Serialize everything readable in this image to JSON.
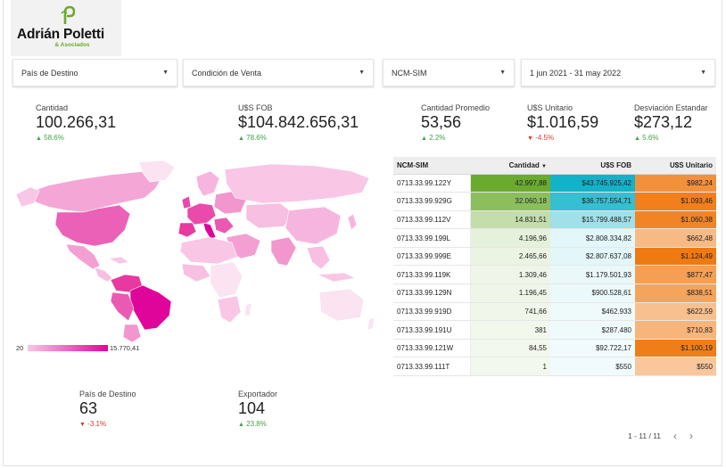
{
  "logo": {
    "name": "Adrián Poletti",
    "sub": "& Asociados"
  },
  "filters": [
    {
      "label": "País de Destino"
    },
    {
      "label": "Condición de Venta"
    },
    {
      "label": "NCM-SIM"
    },
    {
      "label": "1 jun 2021 - 31 may 2022"
    }
  ],
  "kpis": {
    "cantidad": {
      "label": "Cantidad",
      "value": "100.266,31",
      "delta": "58.6%",
      "dir": "up"
    },
    "fob": {
      "label": "U$S FOB",
      "value": "$104.842.656,31",
      "delta": "78.6%",
      "dir": "up"
    },
    "promedio": {
      "label": "Cantidad Promedio",
      "value": "53,56",
      "delta": "2.2%",
      "dir": "up"
    },
    "unitario": {
      "label": "U$S Unitario",
      "value": "$1.016,59",
      "delta": "-4.5%",
      "dir": "down"
    },
    "desviacion": {
      "label": "Desviación Estandar",
      "value": "$273,12",
      "delta": "5.6%",
      "dir": "up"
    },
    "pais": {
      "label": "País de Destino",
      "value": "63",
      "delta": "-3.1%",
      "dir": "down"
    },
    "exportador": {
      "label": "Exportador",
      "value": "104",
      "delta": "23.8%",
      "dir": "up"
    }
  },
  "map_legend": {
    "min": "20",
    "max": "15.770,41"
  },
  "table": {
    "headers": {
      "ncm": "NCM-SIM",
      "cantidad": "Cantidad",
      "sort_marker": "▼",
      "fob": "U$S FOB",
      "unitario": "U$S Unitario"
    },
    "rows": [
      {
        "ncm": "0713.33.99.122Y",
        "cantidad": "42.997,88",
        "fob": "$43.745.925,42",
        "unitario": "$982,24",
        "c_frac": 1.0,
        "f_frac": 1.0,
        "u_frac": 0.87
      },
      {
        "ncm": "0713.33.99.929G",
        "cantidad": "32.060,18",
        "fob": "$36.757.554,71",
        "unitario": "$1.093,46",
        "c_frac": 0.75,
        "f_frac": 0.84,
        "u_frac": 0.97
      },
      {
        "ncm": "0713.33.99.112V",
        "cantidad": "14.831,51",
        "fob": "$15.799.488,57",
        "unitario": "$1.060,38",
        "c_frac": 0.35,
        "f_frac": 0.36,
        "u_frac": 0.94
      },
      {
        "ncm": "0713.33.99.199L",
        "cantidad": "4.196,96",
        "fob": "$2.808.334,82",
        "unitario": "$662,48",
        "c_frac": 0.1,
        "f_frac": 0.06,
        "u_frac": 0.59
      },
      {
        "ncm": "0713.33.99.999E",
        "cantidad": "2.465,66",
        "fob": "$2.807.637,08",
        "unitario": "$1.124,49",
        "c_frac": 0.06,
        "f_frac": 0.06,
        "u_frac": 1.0
      },
      {
        "ncm": "0713.33.99.119K",
        "cantidad": "1.309,46",
        "fob": "$1.179.501,93",
        "unitario": "$877,47",
        "c_frac": 0.03,
        "f_frac": 0.03,
        "u_frac": 0.78
      },
      {
        "ncm": "0713.33.99.129N",
        "cantidad": "1.196,45",
        "fob": "$900.528,61",
        "unitario": "$838,51",
        "c_frac": 0.03,
        "f_frac": 0.02,
        "u_frac": 0.75
      },
      {
        "ncm": "0713.33.99.919D",
        "cantidad": "741,66",
        "fob": "$462.933",
        "unitario": "$622,59",
        "c_frac": 0.02,
        "f_frac": 0.01,
        "u_frac": 0.55
      },
      {
        "ncm": "0713.33.99.191U",
        "cantidad": "381",
        "fob": "$287.480",
        "unitario": "$710,83",
        "c_frac": 0.01,
        "f_frac": 0.01,
        "u_frac": 0.63
      },
      {
        "ncm": "0713.33.99.121W",
        "cantidad": "84,55",
        "fob": "$92.722,17",
        "unitario": "$1.100,19",
        "c_frac": 0.0,
        "f_frac": 0.0,
        "u_frac": 0.98
      },
      {
        "ncm": "0713.33.99.111T",
        "cantidad": "1",
        "fob": "$550",
        "unitario": "$550",
        "c_frac": 0.0,
        "f_frac": 0.0,
        "u_frac": 0.49
      }
    ]
  },
  "pager": {
    "text": "1 - 11 / 11",
    "prev": "‹",
    "next": "›"
  },
  "colors": {
    "up": "#3fa24a",
    "down": "#d9382b",
    "map_low": "#f7c8e6",
    "map_high": "#e0059a",
    "cantidad": "#6aab2e",
    "fob": "#12b2c9",
    "unitario": "#f07a12"
  }
}
